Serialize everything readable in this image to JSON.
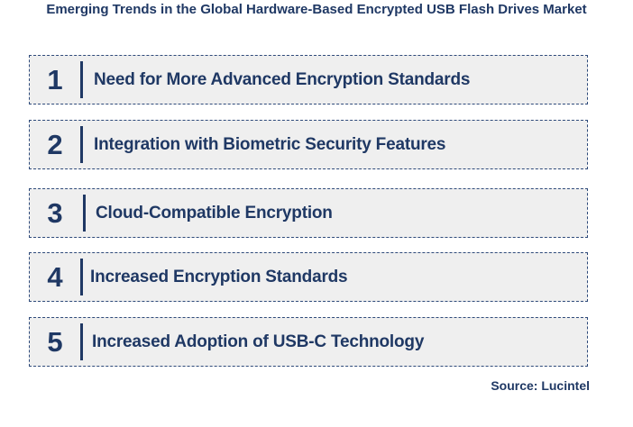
{
  "title": "Emerging Trends in the Global Hardware-Based Encrypted USB Flash Drives Market",
  "trends": [
    {
      "number": "1",
      "label": "Need for More Advanced Encryption Standards"
    },
    {
      "number": "2",
      "label": "Integration with Biometric Security Features"
    },
    {
      "number": "3",
      "label": "Cloud-Compatible Encryption"
    },
    {
      "number": "4",
      "label": "Increased Encryption Standards"
    },
    {
      "number": "5",
      "label": "Increased Adoption of USB-C Technology"
    }
  ],
  "source": "Source: Lucintel",
  "colors": {
    "text": "#1f3864",
    "box_fill": "#efefef",
    "box_border": "#2e4a7a"
  }
}
